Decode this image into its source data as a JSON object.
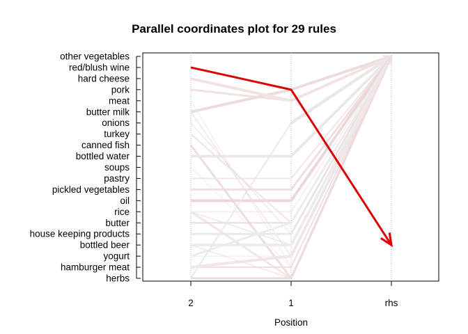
{
  "chart_data": {
    "type": "parallel-coordinates",
    "title": "Parallel coordinates plot for 29 rules",
    "xlabel": "Position",
    "x_categories": [
      "2",
      "1",
      "rhs"
    ],
    "y_items": [
      "other vegetables",
      "red/blush wine",
      "hard cheese",
      "pork",
      "meat",
      "butter milk",
      "onions",
      "turkey",
      "canned fish",
      "bottled water",
      "soups",
      "pastry",
      "pickled vegetables",
      "oil",
      "rice",
      "butter",
      "house keeping products",
      "bottled beer",
      "yogurt",
      "hamburger meat",
      "herbs"
    ],
    "grid": "vertical-dotted",
    "highlight_color": "#dd0000",
    "rules": [
      {
        "lhs2": "red/blush wine",
        "lhs1": "pork",
        "rhs": "bottled beer",
        "highlight": true
      },
      {
        "lhs2": null,
        "lhs1": "pork",
        "rhs": "other vegetables",
        "highlight": false
      },
      {
        "lhs2": "pork",
        "lhs1": "meat",
        "rhs": "other vegetables",
        "highlight": false
      },
      {
        "lhs2": "butter milk",
        "lhs1": "pork",
        "rhs": "other vegetables",
        "highlight": false
      },
      {
        "lhs2": "meat",
        "lhs1": "hamburger meat",
        "rhs": "other vegetables",
        "highlight": false
      },
      {
        "lhs2": "rice",
        "lhs1": "bottled beer",
        "rhs": "other vegetables",
        "highlight": false
      },
      {
        "lhs2": "rice",
        "lhs1": "herbs",
        "rhs": "other vegetables",
        "highlight": false
      },
      {
        "lhs2": null,
        "lhs1": "onions",
        "rhs": "other vegetables",
        "highlight": false
      },
      {
        "lhs2": "butter milk",
        "lhs1": "yogurt",
        "rhs": "other vegetables",
        "highlight": false
      },
      {
        "lhs2": "turkey",
        "lhs1": "butter",
        "rhs": "other vegetables",
        "highlight": false
      },
      {
        "lhs2": "canned fish",
        "lhs1": "herbs",
        "rhs": "other vegetables",
        "highlight": false
      },
      {
        "lhs2": "bottled water",
        "lhs1": "bottled water",
        "rhs": "other vegetables",
        "highlight": false
      },
      {
        "lhs2": "soups",
        "lhs1": "hamburger meat",
        "rhs": "other vegetables",
        "highlight": false
      },
      {
        "lhs2": "pastry",
        "lhs1": "pastry",
        "rhs": "other vegetables",
        "highlight": false
      },
      {
        "lhs2": "pickled vegetables",
        "lhs1": "pickled vegetables",
        "rhs": "other vegetables",
        "highlight": false
      },
      {
        "lhs2": "oil",
        "lhs1": "oil",
        "rhs": "other vegetables",
        "highlight": false
      },
      {
        "lhs2": "rice",
        "lhs1": "rice",
        "rhs": "other vegetables",
        "highlight": false
      },
      {
        "lhs2": "butter",
        "lhs1": "butter",
        "rhs": "other vegetables",
        "highlight": false
      },
      {
        "lhs2": "house keeping products",
        "lhs1": "house keeping products",
        "rhs": "other vegetables",
        "highlight": false
      },
      {
        "lhs2": "bottled beer",
        "lhs1": "bottled beer",
        "rhs": "other vegetables",
        "highlight": false
      },
      {
        "lhs2": "yogurt",
        "lhs1": "yogurt",
        "rhs": "other vegetables",
        "highlight": false
      },
      {
        "lhs2": "hamburger meat",
        "lhs1": "hamburger meat",
        "rhs": "other vegetables",
        "highlight": false
      },
      {
        "lhs2": "herbs",
        "lhs1": "herbs",
        "rhs": "other vegetables",
        "highlight": false
      },
      {
        "lhs2": "hard cheese",
        "lhs1": "meat",
        "rhs": "other vegetables",
        "highlight": false
      },
      {
        "lhs2": "onions",
        "lhs1": "house keeping products",
        "rhs": "other vegetables",
        "highlight": false
      },
      {
        "lhs2": "herbs",
        "lhs1": "onions",
        "rhs": "other vegetables",
        "highlight": false
      },
      {
        "lhs2": "yogurt",
        "lhs1": "butter",
        "rhs": "other vegetables",
        "highlight": false
      },
      {
        "lhs2": "hamburger meat",
        "lhs1": "yogurt",
        "rhs": "other vegetables",
        "highlight": false
      },
      {
        "lhs2": "bottled beer",
        "lhs1": "herbs",
        "rhs": "other vegetables",
        "highlight": false
      }
    ]
  }
}
